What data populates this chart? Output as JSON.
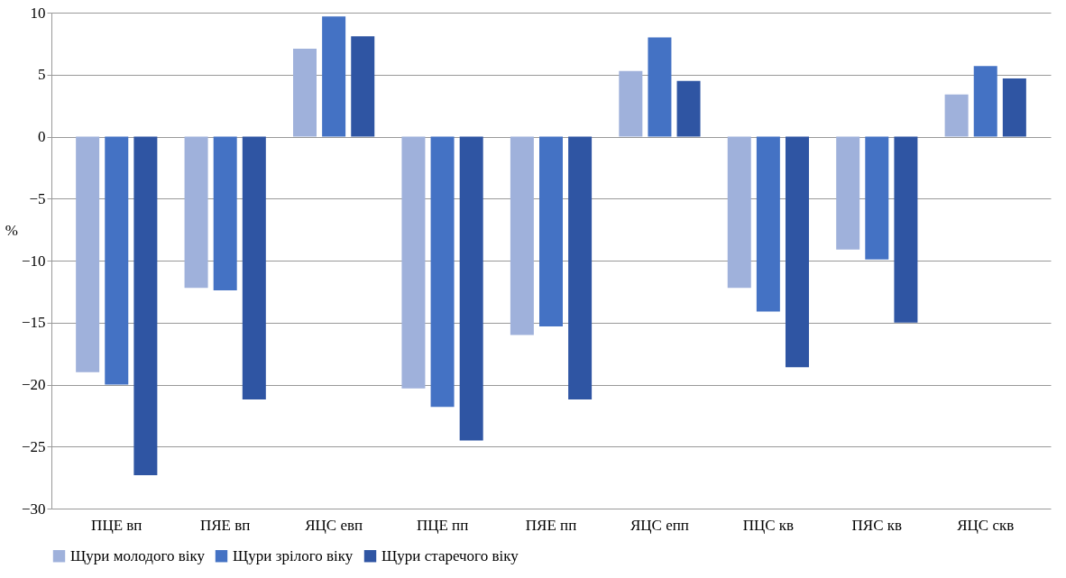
{
  "chart_data": {
    "type": "bar",
    "ylabel": "%",
    "categories": [
      "ПЦЕ вп",
      "ПЯЕ вп",
      "ЯЦС евп",
      "ПЦЕ пп",
      "ПЯЕ пп",
      "ЯЦС епп",
      "ПЦС кв",
      "ПЯС кв",
      "ЯЦС скв"
    ],
    "series": [
      {
        "name": "Щури молодого віку",
        "color": "#9fb1db",
        "values": [
          -19,
          -12.2,
          7.1,
          -20.3,
          -16,
          5.3,
          -12.2,
          -9.1,
          3.4
        ]
      },
      {
        "name": "Щури зрілого віку",
        "color": "#4472c4",
        "values": [
          -20,
          -12.4,
          9.7,
          -21.8,
          -15.3,
          8,
          -14.1,
          -9.9,
          5.7
        ]
      },
      {
        "name": "Щури старечого віку",
        "color": "#2f55a3",
        "values": [
          -27.3,
          -21.2,
          8.1,
          -24.5,
          -21.2,
          4.5,
          -18.6,
          -15,
          4.7
        ]
      }
    ],
    "ylim": [
      -30,
      10
    ],
    "yticks": [
      -30,
      -25,
      -20,
      -15,
      -10,
      -5,
      0,
      5,
      10
    ],
    "grid": "y",
    "legend": "bottom"
  }
}
